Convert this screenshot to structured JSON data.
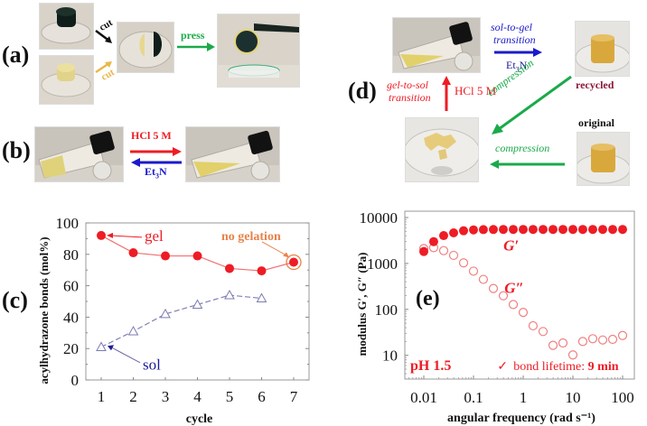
{
  "panels": {
    "a": {
      "label": "(a)",
      "cut_top": "cut",
      "cut_bottom": "cut",
      "press": "press",
      "photos": [
        "dark-green-gel-disc",
        "yellow-gel-disc",
        "two-half-gels-joined",
        "healed-gel-lifted-by-tweezers"
      ],
      "colors": {
        "cut_top": "#111111",
        "cut_bottom": "#e8b84a",
        "press": "#1aaa4a"
      }
    },
    "b": {
      "label": "(b)",
      "forward": "HCl 5 M",
      "backward_prefix": "Et",
      "backward_sub": "3",
      "backward_suffix": "N",
      "photos": [
        "vial-gel",
        "vial-sol"
      ],
      "colors": {
        "forward": "#ee1c24",
        "backward": "#1a1acc"
      }
    },
    "d": {
      "label": "(d)",
      "sol_to_gel_1": "sol-to-gel",
      "sol_to_gel_2": "transition",
      "et3n_prefix": "Et",
      "et3n_sub": "3",
      "et3n_suffix": "N",
      "gel_to_sol_1": "gel-to-sol",
      "gel_to_sol_2": "transition",
      "hcl": "HCl 5 M",
      "compression_diag": "compression",
      "compression_horiz": "compression",
      "recycled": "recycled",
      "original": "original",
      "photos": [
        "vial-sol",
        "recycled-gel",
        "crushed-gel",
        "original-gel"
      ],
      "colors": {
        "sol_to_gel": "#1a1acc",
        "gel_to_sol": "#ee1c24",
        "compression": "#1aaa4a",
        "recycled": "#8b1a3a",
        "original": "#111111"
      }
    }
  },
  "chart_data": [
    {
      "id": "c",
      "panel_label": "(c)",
      "type": "line",
      "title": "",
      "xlabel": "cycle",
      "ylabel": "acylhydrazone bonds (mol%)",
      "xlim": [
        0.6,
        7.6
      ],
      "ylim": [
        0,
        100
      ],
      "xticks": [
        1,
        2,
        3,
        4,
        5,
        6,
        7
      ],
      "yticks": [
        0,
        20,
        40,
        60,
        80,
        100
      ],
      "grid": false,
      "series": [
        {
          "name": "gel",
          "x": [
            1,
            2,
            3,
            4,
            5,
            6,
            7
          ],
          "values": [
            92,
            81,
            79,
            79,
            71,
            69.5,
            75
          ],
          "marker": "filled-circle",
          "color": "#ee1c24",
          "line": "solid"
        },
        {
          "name": "sol",
          "x": [
            1,
            2,
            3,
            4,
            5,
            6
          ],
          "values": [
            21,
            31,
            42,
            48,
            54,
            52
          ],
          "marker": "open-triangle",
          "color": "#7b7bb0",
          "line": "dashed"
        }
      ],
      "annotations": [
        {
          "text": "gel",
          "color": "#ee1c24",
          "points_to": [
            1,
            92
          ]
        },
        {
          "text": "sol",
          "color": "#1a1a99",
          "points_to": [
            1,
            21
          ]
        },
        {
          "text": "no gelation",
          "color": "#e8824a",
          "points_to": [
            7,
            75
          ]
        }
      ]
    },
    {
      "id": "e",
      "panel_label": "(e)",
      "type": "scatter",
      "title": "",
      "xlabel": "angular frequency (rad s⁻¹)",
      "ylabel": "modulus G′, G″ (Pa)",
      "xscale": "log",
      "yscale": "log",
      "xlim": [
        0.0042,
        190
      ],
      "ylim": [
        3.2,
        12500
      ],
      "xticks": [
        "0.01",
        "0.1",
        "1",
        "10",
        "100"
      ],
      "yticks": [
        "10",
        "100",
        "1000",
        "10000"
      ],
      "grid": false,
      "series": [
        {
          "name": "G′",
          "marker": "filled-circle",
          "color": "#ee1c24",
          "x": [
            0.01,
            0.0158,
            0.0251,
            0.0398,
            0.0631,
            0.1,
            0.158,
            0.251,
            0.398,
            0.631,
            1,
            1.58,
            2.51,
            3.98,
            6.31,
            10,
            15.8,
            25.1,
            39.8,
            63.1,
            100
          ],
          "values": [
            1820,
            2990,
            4040,
            4640,
            5150,
            5380,
            5450,
            5480,
            5500,
            5500,
            5500,
            5500,
            5500,
            5500,
            5500,
            5500,
            5500,
            5500,
            5500,
            5500,
            5500
          ]
        },
        {
          "name": "G″",
          "marker": "open-circle",
          "color": "#f08080",
          "x": [
            0.01,
            0.0158,
            0.0251,
            0.0398,
            0.0631,
            0.1,
            0.158,
            0.251,
            0.398,
            0.631,
            1,
            1.58,
            2.51,
            3.98,
            6.31,
            10,
            15.8,
            25.1,
            39.8,
            63.1,
            100
          ],
          "values": [
            2110,
            2210,
            1900,
            1500,
            1030,
            680,
            450,
            285,
            198,
            128,
            86,
            44,
            33,
            16.5,
            18.6,
            10.2,
            20,
            23,
            21.6,
            22.3,
            27
          ]
        }
      ],
      "annotations": [
        {
          "text": "G′",
          "color": "#ee1c24"
        },
        {
          "text": "G″",
          "color": "#ee1c24"
        },
        {
          "text": "pH 1.5",
          "color": "#ee1c24"
        },
        {
          "text": "✓",
          "color": "#ee1c24"
        },
        {
          "text": "bond lifetime: ",
          "color": "#ee1c24"
        },
        {
          "text": "9 min",
          "color": "#ee1c24"
        }
      ]
    }
  ]
}
